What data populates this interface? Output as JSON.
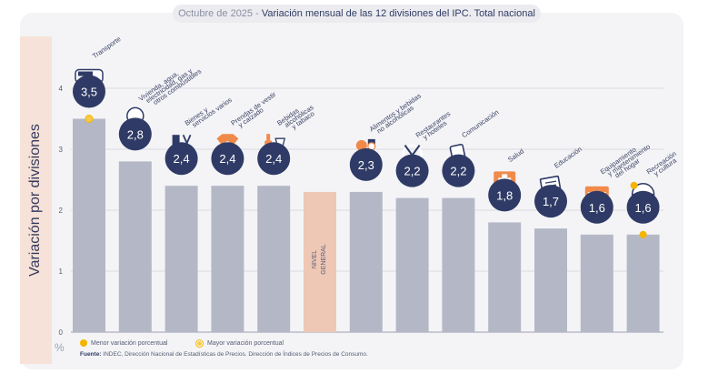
{
  "title": {
    "date": "Octubre de 2025",
    "separator": "-",
    "text": "Variación mensual de las 12 divisiones del IPC. Total nacional"
  },
  "y_axis_label": "Variación por divisiones",
  "unit": "%",
  "legend": {
    "min_label": "Menor variación porcentual",
    "max_label": "Mayor variación porcentual"
  },
  "source": {
    "label": "Fuente:",
    "text": "INDEC, Dirección Nacional de Estadísticas de Precios. Dirección de Índices de Precios de Consumo."
  },
  "colors": {
    "bar": "#b4b8c6",
    "highlight_bar": "#efc7b5",
    "badge": "#2f3b66",
    "accent": "#f4b400",
    "gridline": "#d5d6dd"
  },
  "chart_data": {
    "type": "bar",
    "ylim": [
      0,
      4
    ],
    "yticks": [
      0,
      1,
      2,
      3,
      4
    ],
    "grid": true,
    "categories": [
      "Transporte",
      "Vivienda, agua, electricidad, gas y otros combustibles",
      "Bienes y servicios varios",
      "Prendas de vestir y calzado",
      "Bebidas alcohólicas y tabaco",
      "Nivel general",
      "Alimentos y bebidas no alcohólicas",
      "Restaurantes y hoteles",
      "Comunicación",
      "Salud",
      "Educación",
      "Equipamiento y mantenimiento del hogar",
      "Recreación y cultura"
    ],
    "values": [
      3.5,
      2.8,
      2.4,
      2.4,
      2.4,
      2.3,
      2.3,
      2.2,
      2.2,
      1.8,
      1.7,
      1.6,
      1.6
    ],
    "value_labels": [
      "3,5",
      "2,8",
      "2,4",
      "2,4",
      "2,4",
      "2,3",
      "2,3",
      "2,2",
      "2,2",
      "1,8",
      "1,7",
      "1,6",
      "1,6"
    ],
    "category_labels": [
      [
        "Transporte"
      ],
      [
        "Vivienda, agua,",
        "electricidad, gas y",
        "otros combustibles"
      ],
      [
        "Bienes y",
        "servicios varios"
      ],
      [
        "Prendas de vestir",
        "y calzado"
      ],
      [
        "Bebidas",
        "alcohólicas",
        "y tabaco"
      ],
      [
        "NIVEL",
        "GENERAL"
      ],
      [
        "Alimentos y bebidas",
        "no alcohólicas"
      ],
      [
        "Restaurantes",
        "y hoteles"
      ],
      [
        "Comunicación"
      ],
      [
        "Salud"
      ],
      [
        "Educación"
      ],
      [
        "Equipamiento",
        "y mantenimiento",
        "del hogar"
      ],
      [
        "Recreación",
        "y cultura"
      ]
    ],
    "icons": [
      "bus-icon",
      "lightbulb-icon",
      "comb-scissors-icon",
      "shirt-icon",
      "wine-bottle-icon",
      "",
      "food-basket-icon",
      "fork-knife-icon",
      "smartphone-icon",
      "medical-cross-icon",
      "books-icon",
      "air-conditioner-icon",
      "beach-umbrella-icon"
    ],
    "highlight_index": 5,
    "max_index": 0,
    "min_index": 12
  }
}
